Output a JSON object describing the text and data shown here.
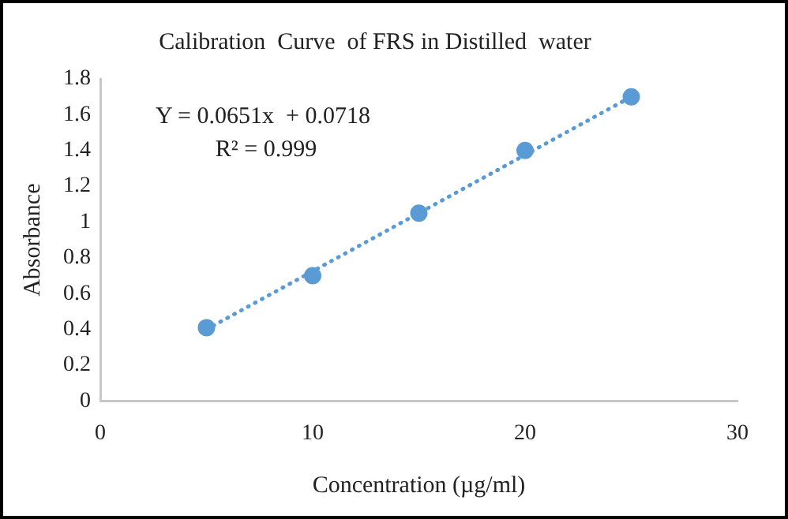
{
  "chart_data": {
    "type": "scatter",
    "title": "Calibration  Curve  of FRS in Distilled  water",
    "xlabel": "Concentration (µg/ml)",
    "ylabel": "Absorbance",
    "x": [
      5,
      10,
      15,
      20,
      25
    ],
    "series": [
      {
        "type": "scatter",
        "color": "#5b9bd5",
        "marker": "circle",
        "values": [
          0.41,
          0.7,
          1.05,
          1.4,
          1.7
        ]
      },
      {
        "type": "line",
        "color": "#5b9bd5",
        "line_style": "dotted",
        "marker": "none",
        "x": [
          5,
          25
        ],
        "values": [
          0.4,
          1.7
        ]
      }
    ],
    "annotations": [
      "Y = 0.0651x  + 0.0718",
      "R² = 0.999"
    ],
    "xlim": [
      0,
      30
    ],
    "xticks": [
      0,
      10,
      20,
      30
    ],
    "ylim": [
      0,
      1.8
    ],
    "yticks": [
      0,
      0.2,
      0.4,
      0.6,
      0.8,
      1,
      1.2,
      1.4,
      1.6,
      1.8
    ],
    "grid": false,
    "legend": false
  }
}
